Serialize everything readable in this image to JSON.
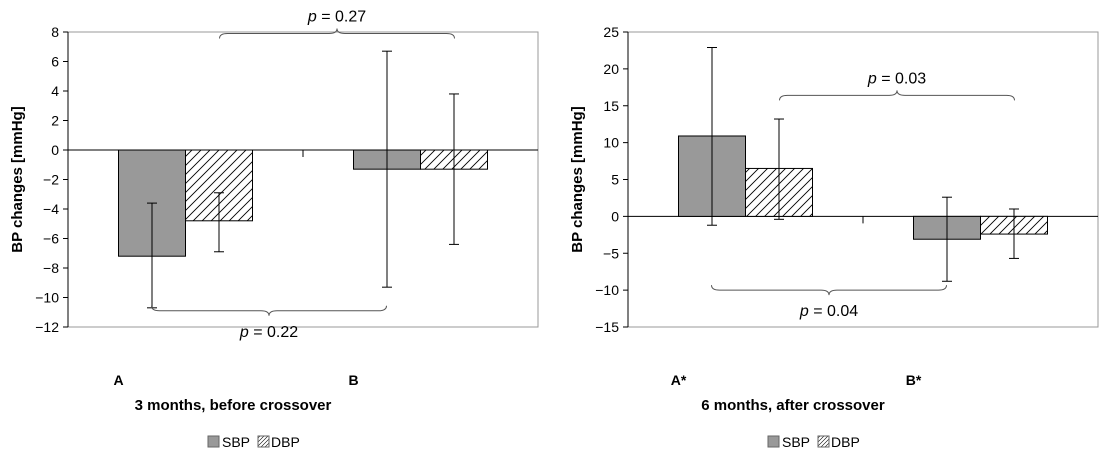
{
  "colors": {
    "sbp": "#999999",
    "dbp_hatch": "#000000",
    "axis": "#000000",
    "bracket": "#555555"
  },
  "legend": {
    "sbp_label": "SBP",
    "dbp_label": "DBP",
    "placement": "bottom"
  },
  "chart_data": [
    {
      "type": "bar",
      "categories": [
        "A",
        "B"
      ],
      "xlabel": "3 months, before crossover",
      "ylabel": "BP changes [mmHg]",
      "ylim": [
        -12,
        8
      ],
      "yticks": [
        8,
        6,
        4,
        2,
        0,
        -2,
        -4,
        -6,
        -8,
        -10,
        -12
      ],
      "ytick_labels": [
        "8",
        "6",
        "4",
        "2",
        "0",
        "−2",
        "−4",
        "−6",
        "−8",
        "−10",
        "−12"
      ],
      "series": [
        {
          "name": "SBP",
          "values": [
            -7.2,
            -1.3
          ],
          "err_low": [
            -10.7,
            -9.3
          ],
          "err_high": [
            -3.6,
            6.7
          ]
        },
        {
          "name": "DBP",
          "values": [
            -4.8,
            -1.3
          ],
          "err_low": [
            -6.9,
            -6.4
          ],
          "err_high": [
            -2.9,
            3.8
          ]
        }
      ],
      "annotations": [
        {
          "prefix": "p",
          "rest": " = 0.27",
          "position": "top",
          "y": 7.9
        },
        {
          "prefix": "p",
          "rest": " = 0.22",
          "position": "bottom",
          "y": -10.9
        }
      ]
    },
    {
      "type": "bar",
      "categories": [
        "A*",
        "B*"
      ],
      "xlabel": "6 months, after crossover",
      "ylabel": "BP changes [mmHg]",
      "ylim": [
        -15,
        25
      ],
      "yticks": [
        25,
        20,
        15,
        10,
        5,
        0,
        -5,
        -10,
        -15
      ],
      "ytick_labels": [
        "25",
        "20",
        "15",
        "10",
        "5",
        "0",
        "−5",
        "−10",
        "−15"
      ],
      "series": [
        {
          "name": "SBP",
          "values": [
            10.9,
            -3.1
          ],
          "err_low": [
            -1.2,
            -8.8
          ],
          "err_high": [
            22.9,
            2.6
          ]
        },
        {
          "name": "DBP",
          "values": [
            6.5,
            -2.4
          ],
          "err_low": [
            -0.4,
            -5.7
          ],
          "err_high": [
            13.2,
            1.0
          ]
        }
      ],
      "annotations": [
        {
          "prefix": "p",
          "rest": " = 0.03",
          "position": "top",
          "y": 16.4
        },
        {
          "prefix": "p",
          "rest": " = 0.04",
          "position": "bottom",
          "y": -10.0
        }
      ]
    }
  ]
}
